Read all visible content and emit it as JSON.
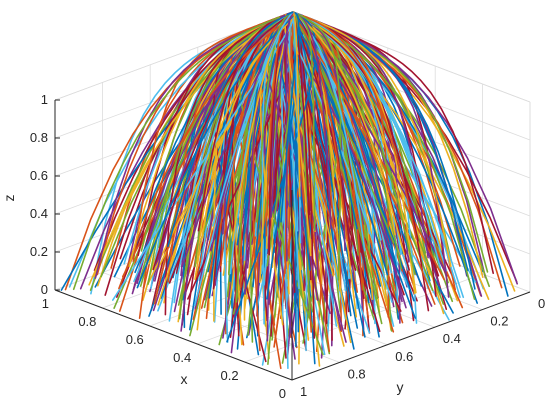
{
  "chart_data": {
    "type": "line",
    "title": "",
    "projection": "3d",
    "xlabel": "x",
    "ylabel": "y",
    "zlabel": "z",
    "xlim": [
      0,
      1
    ],
    "ylim": [
      0,
      1
    ],
    "zlim": [
      0,
      1
    ],
    "x_ticks": [
      "0",
      "0.2",
      "0.4",
      "0.6",
      "0.8",
      "1"
    ],
    "y_ticks": [
      "0",
      "0.2",
      "0.4",
      "0.6",
      "0.8",
      "1"
    ],
    "z_ticks": [
      "0",
      "0.2",
      "0.4",
      "0.6",
      "0.8",
      "1"
    ],
    "grid": true,
    "legend": "none",
    "series_description_count": 600,
    "series_colors": [
      "#0072bd",
      "#d95319",
      "#edb120",
      "#7e2f8e",
      "#77ac30",
      "#4dbeee",
      "#a2142f"
    ],
    "trajectory_family": {
      "start_grid_x": [
        0.05,
        0.15,
        0.25,
        0.35,
        0.45,
        0.55,
        0.65,
        0.75,
        0.85,
        0.95
      ],
      "start_grid_y": [
        0.05,
        0.15,
        0.25,
        0.35,
        0.45,
        0.55,
        0.65,
        0.75,
        0.85,
        0.95
      ],
      "end_point": [
        1,
        0,
        1
      ]
    }
  }
}
